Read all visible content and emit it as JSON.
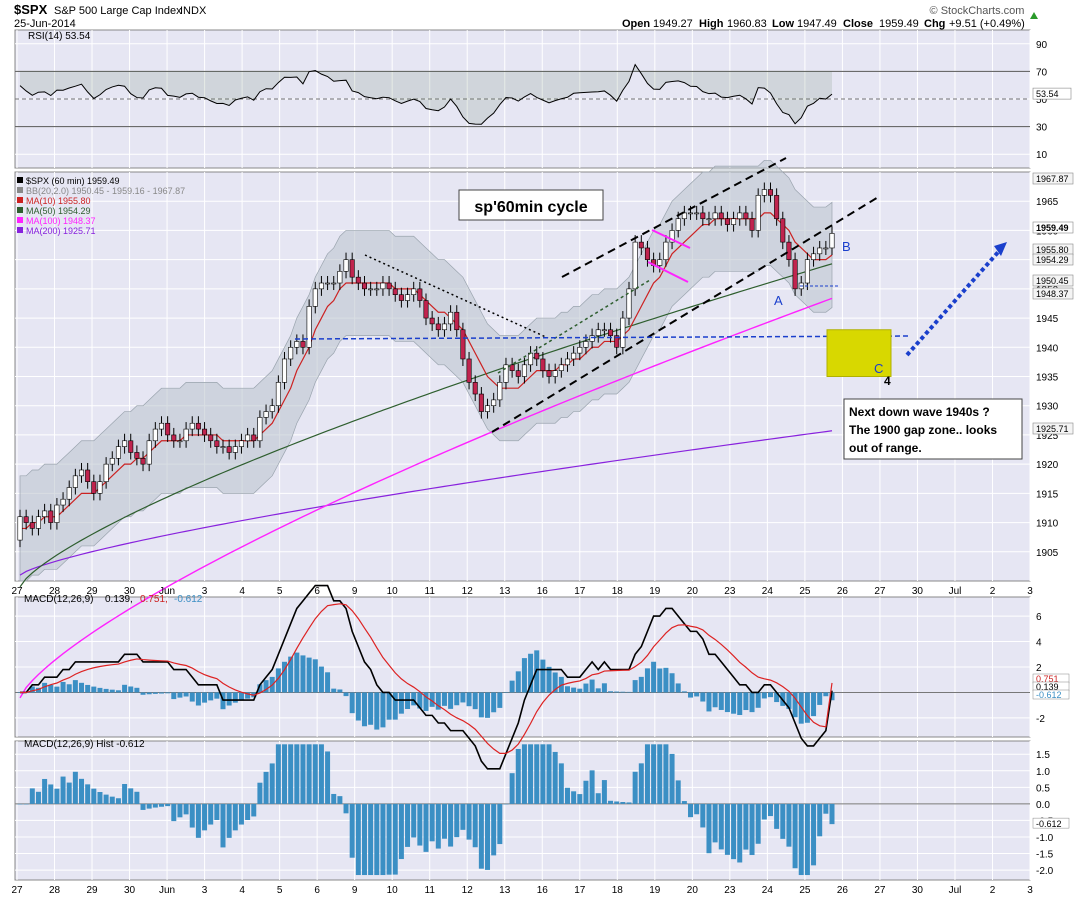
{
  "header": {
    "symbol": "$SPX",
    "name": "S&P 500 Large Cap Index",
    "exchange": "INDX",
    "date": "25-Jun-2014",
    "open_label": "Open",
    "open": "1949.27",
    "high_label": "High",
    "high": "1960.83",
    "low_label": "Low",
    "low": "1947.49",
    "close_label": "Close",
    "close": "1959.49",
    "chg_label": "Chg",
    "chg": "+9.51 (+0.49%)",
    "watermark": "© StockCharts.com",
    "chg_arrow_icon": "up-arrow-icon"
  },
  "colors": {
    "plot_bg": "#e6e6f3",
    "grid": "#ffffff",
    "rsi_fill": "#5a7a5a",
    "up_candle": "#ffffff",
    "down_candle": "#c0244e",
    "ma10": "#cc2222",
    "ma50": "#2e5e2e",
    "ma100": "#ff22ff",
    "ma200": "#8822dd",
    "hist": "#3b8fc4",
    "macd": "#000000",
    "signal": "#dd2222",
    "annotation_blue": "#1a3fcc",
    "zone": "#d8d800"
  },
  "rsi_panel": {
    "legend": "RSI(14) 53.54",
    "ticks": [
      "90",
      "70",
      "50",
      "30",
      "10"
    ],
    "last_label": "53.54"
  },
  "price_panel": {
    "legend": [
      {
        "text": "$SPX (60 min) 1959.49",
        "color": "#000000"
      },
      {
        "text": "BB(20,2.0) 1950.45 - 1959.16 - 1967.87",
        "color": "#888888"
      },
      {
        "text": "MA(10) 1955.80",
        "color": "#cc2222"
      },
      {
        "text": "MA(50) 1954.29",
        "color": "#2e5e2e"
      },
      {
        "text": "MA(100) 1948.37",
        "color": "#ff22ff"
      },
      {
        "text": "MA(200) 1925.71",
        "color": "#8822dd"
      }
    ],
    "ticks": [
      "1965",
      "1960",
      "1955",
      "1950",
      "1945",
      "1940",
      "1935",
      "1930",
      "1925",
      "1920",
      "1915",
      "1910",
      "1905"
    ],
    "right_labels": [
      "1967.87",
      "1959.49",
      "1955.80",
      "1954.29",
      "1950.45",
      "1948.37",
      "1925.71"
    ],
    "annotations": {
      "title": "sp'60min cycle",
      "label_a": "A",
      "label_b": "B",
      "label_c": "C",
      "label_4": "4",
      "note_lines": [
        "Next down wave 1940s ?",
        "The 1900 gap zone.. looks",
        "out of range."
      ]
    }
  },
  "macd_panel": {
    "legend_name": "MACD(12,26,9)",
    "legend_v1": "0.139,",
    "legend_v2": "0.751,",
    "legend_v3": "-0.612",
    "ticks": [
      "6",
      "4",
      "2",
      "-2"
    ],
    "right_labels": [
      "0.751",
      "0.139",
      "-0.612"
    ]
  },
  "hist_panel": {
    "legend": "MACD(12,26,9) Hist -0.612",
    "ticks": [
      "1.5",
      "1.0",
      "0.5",
      "0.0",
      "-0.5",
      "-1.0",
      "-1.5",
      "-2.0"
    ],
    "last_label": "-0.612"
  },
  "x_axis": {
    "labels": [
      "27",
      "28",
      "29",
      "30",
      "Jun",
      "3",
      "4",
      "5",
      "6",
      "9",
      "10",
      "11",
      "12",
      "13",
      "16",
      "17",
      "18",
      "19",
      "20",
      "23",
      "24",
      "25",
      "26",
      "27",
      "30",
      "Jul",
      "2",
      "3"
    ]
  },
  "chart_data": {
    "type": "candlestick",
    "interval": "60 min",
    "x_labels": [
      "27",
      "28",
      "29",
      "30",
      "Jun",
      "3",
      "4",
      "5",
      "6",
      "9",
      "10",
      "11",
      "12",
      "13",
      "16",
      "17",
      "18",
      "19",
      "20",
      "23",
      "24",
      "25",
      "26",
      "27",
      "30",
      "Jul",
      "2",
      "3"
    ],
    "price_ylim": [
      1900,
      1970
    ],
    "price_closes": [
      1911,
      1910,
      1909,
      1911,
      1912,
      1910,
      1913,
      1914,
      1916,
      1918,
      1919,
      1917,
      1915,
      1917,
      1920,
      1921,
      1923,
      1924,
      1922,
      1921,
      1920,
      1924,
      1926,
      1927,
      1925,
      1924,
      1924,
      1926,
      1927,
      1926,
      1925,
      1924,
      1923,
      1923,
      1922,
      1923,
      1924,
      1925,
      1924,
      1928,
      1929,
      1930,
      1934,
      1938,
      1940,
      1941,
      1940,
      1947,
      1950,
      1951,
      1951,
      1951,
      1953,
      1955,
      1952,
      1951,
      1950,
      1950,
      1950,
      1951,
      1950,
      1949,
      1948,
      1949,
      1950,
      1948,
      1945,
      1944,
      1943,
      1944,
      1946,
      1943,
      1938,
      1934,
      1932,
      1929,
      1930,
      1931,
      1934,
      1937,
      1936,
      1935,
      1937,
      1939,
      1938,
      1936,
      1935,
      1936,
      1937,
      1938,
      1939,
      1940,
      1941,
      1942,
      1943,
      1943,
      1942,
      1940,
      1945,
      1950,
      1958,
      1957,
      1955,
      1954,
      1955,
      1958,
      1960,
      1962,
      1963,
      1963,
      1963,
      1962,
      1962,
      1963,
      1962,
      1961,
      1962,
      1963,
      1962,
      1960,
      1966,
      1967,
      1966,
      1962,
      1958,
      1955,
      1950,
      1951,
      1955,
      1956,
      1957,
      1957,
      1959.49
    ],
    "price_opens": [
      1907,
      1911,
      1910,
      1909,
      1911,
      1912,
      1910,
      1913,
      1914,
      1916,
      1918,
      1919,
      1917,
      1915,
      1917,
      1920,
      1921,
      1923,
      1924,
      1922,
      1921,
      1920,
      1924,
      1926,
      1927,
      1925,
      1924,
      1924,
      1926,
      1927,
      1926,
      1925,
      1924,
      1923,
      1923,
      1922,
      1923,
      1924,
      1925,
      1924,
      1928,
      1929,
      1930,
      1934,
      1938,
      1940,
      1941,
      1940,
      1947,
      1950,
      1951,
      1951,
      1951,
      1953,
      1955,
      1952,
      1951,
      1950,
      1950,
      1950,
      1951,
      1950,
      1949,
      1948,
      1949,
      1950,
      1948,
      1945,
      1944,
      1943,
      1944,
      1946,
      1943,
      1938,
      1934,
      1932,
      1929,
      1930,
      1931,
      1934,
      1937,
      1936,
      1935,
      1937,
      1939,
      1938,
      1936,
      1935,
      1936,
      1937,
      1938,
      1939,
      1940,
      1941,
      1942,
      1943,
      1943,
      1942,
      1940,
      1945,
      1950,
      1958,
      1957,
      1955,
      1954,
      1955,
      1958,
      1960,
      1962,
      1963,
      1963,
      1963,
      1962,
      1962,
      1963,
      1962,
      1961,
      1962,
      1963,
      1962,
      1960,
      1966,
      1967,
      1966,
      1962,
      1958,
      1955,
      1950,
      1951,
      1955,
      1956,
      1957,
      1957
    ],
    "ma10": [
      1909,
      1909,
      1910,
      1910,
      1911,
      1911,
      1911,
      1912,
      1913,
      1914,
      1915,
      1915,
      1915,
      1916,
      1917,
      1918,
      1919,
      1920,
      1920,
      1921,
      1921,
      1922,
      1923,
      1924,
      1924,
      1924,
      1924,
      1925,
      1925,
      1925,
      1925,
      1925,
      1925,
      1924,
      1924,
      1924,
      1924,
      1924,
      1924,
      1925,
      1926,
      1927,
      1929,
      1931,
      1933,
      1936,
      1938,
      1940,
      1943,
      1945,
      1947,
      1948,
      1950,
      1951,
      1951,
      1951,
      1951,
      1951,
      1951,
      1951,
      1951,
      1950,
      1950,
      1950,
      1950,
      1949,
      1948,
      1947,
      1946,
      1946,
      1945,
      1944,
      1943,
      1941,
      1939,
      1937,
      1935,
      1934,
      1933,
      1933,
      1933,
      1933,
      1934,
      1935,
      1936,
      1936,
      1936,
      1936,
      1937,
      1937,
      1938,
      1938,
      1939,
      1940,
      1940,
      1941,
      1941,
      1941,
      1942,
      1943,
      1945,
      1947,
      1949,
      1951,
      1952,
      1954,
      1956,
      1957,
      1958,
      1959,
      1960,
      1961,
      1961,
      1962,
      1962,
      1962,
      1962,
      1962,
      1962,
      1962,
      1962,
      1963,
      1963,
      1962,
      1961,
      1960,
      1958,
      1957,
      1956,
      1955,
      1955,
      1955,
      1955.8
    ],
    "ma50_start": 1899,
    "ma50_end": 1954.29,
    "ma100_start": 1880,
    "ma100_end": 1948.37,
    "ma200_start": 1901,
    "ma200_end": 1925.71,
    "bollinger_last": {
      "lower": 1950.45,
      "middle": 1959.16,
      "upper": 1967.87
    },
    "rsi_last": 53.54,
    "rsi_ylim": [
      0,
      100
    ],
    "macd_last": 0.139,
    "signal_last": 0.751,
    "hist_last": -0.612,
    "macd_ylim": [
      -3.5,
      7.5
    ],
    "hist_ylim": [
      -2.3,
      1.9
    ],
    "annotation_zone": [
      1935,
      1943
    ]
  }
}
